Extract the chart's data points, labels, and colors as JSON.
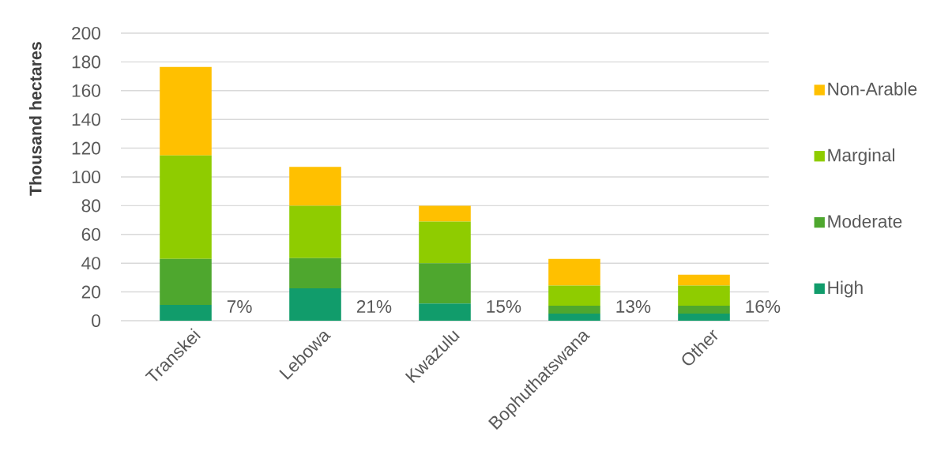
{
  "chart_data": {
    "type": "bar",
    "stacked": true,
    "ylabel": "Thousand hectares",
    "categories": [
      "Transkei",
      "Lebowa",
      "Kwazulu",
      "Bophuthatswana",
      "Other"
    ],
    "series": [
      {
        "name": "High",
        "color": "#119c6b",
        "values": [
          11,
          22.5,
          12,
          5,
          5
        ]
      },
      {
        "name": "Moderate",
        "color": "#4ea72e",
        "values": [
          32,
          21,
          28,
          5.5,
          5.5
        ]
      },
      {
        "name": "Marginal",
        "color": "#8fcc00",
        "values": [
          72,
          36.5,
          29,
          14,
          14
        ]
      },
      {
        "name": "Non-Arable",
        "color": "#ffc000",
        "values": [
          61.5,
          27,
          11,
          18.5,
          7.5
        ]
      }
    ],
    "annotations": [
      "7%",
      "21%",
      "15%",
      "13%",
      "16%"
    ],
    "ylim": [
      0,
      200
    ],
    "yticks": [
      0,
      20,
      40,
      60,
      80,
      100,
      120,
      140,
      160,
      180,
      200
    ],
    "grid": "y",
    "legend": "right"
  }
}
